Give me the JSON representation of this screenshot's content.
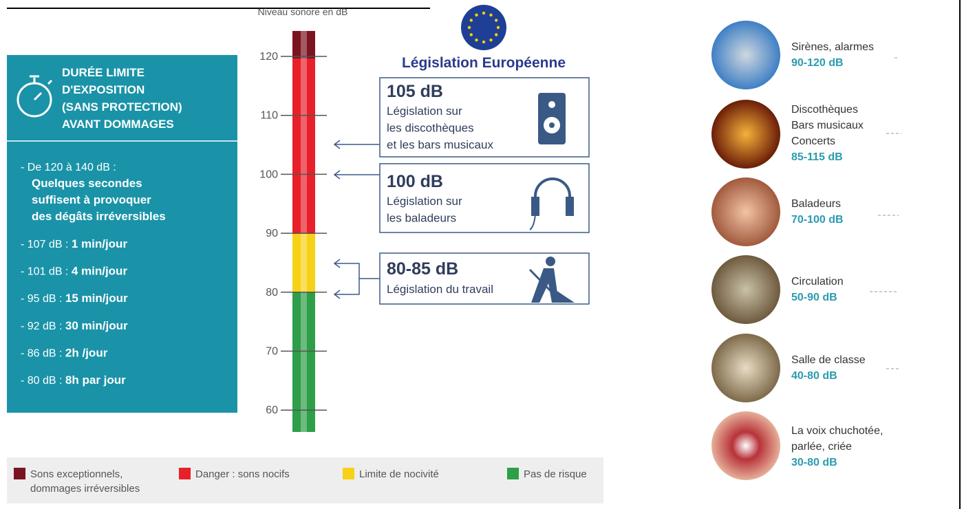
{
  "scale": {
    "label": "Niveau sonore en dB",
    "ticks": [
      "120",
      "110",
      "100",
      "90",
      "80",
      "70",
      "60"
    ]
  },
  "exposure": {
    "title": [
      "DURÉE LIMITE",
      "D'EXPOSITION",
      "(SANS PROTECTION)",
      "AVANT DOMMAGES"
    ],
    "first": {
      "prefix": "- De 120 à 140 dB :",
      "lines": [
        "Quelques secondes",
        "suffisent à provoquer",
        "des dégâts irréversibles"
      ]
    },
    "items": [
      {
        "prefix": "- 107 dB : ",
        "duration": "1 min/jour"
      },
      {
        "prefix": "- 101 dB : ",
        "duration": "4 min/jour"
      },
      {
        "prefix": "- 95 dB : ",
        "duration": "15 min/jour"
      },
      {
        "prefix": "- 92 dB : ",
        "duration": "30 min/jour"
      },
      {
        "prefix": "- 86 dB : ",
        "duration": "2h /jour"
      },
      {
        "prefix": "- 80 dB : ",
        "duration": "8h par jour"
      }
    ]
  },
  "legislation": {
    "title": "Législation Européenne",
    "boxes": [
      {
        "level": "105 dB",
        "lines": [
          "Législation sur",
          "les discothèques",
          "et les bars musicaux"
        ]
      },
      {
        "level": "100 dB",
        "lines": [
          "Législation sur",
          "les baladeurs"
        ]
      },
      {
        "level": "80-85 dB",
        "lines": [
          "Législation du travail"
        ]
      }
    ]
  },
  "legend": [
    {
      "lines": [
        "Sons exceptionnels,",
        "dommages irréversibles"
      ]
    },
    {
      "lines": [
        "Danger : sons nocifs"
      ]
    },
    {
      "lines": [
        "Limite de nocivité"
      ]
    },
    {
      "lines": [
        "Pas de risque"
      ]
    }
  ],
  "sources": [
    {
      "lines": [
        "Sirènes, alarmes"
      ],
      "range": "90-120 dB"
    },
    {
      "lines": [
        "Discothèques",
        "Bars musicaux",
        "Concerts"
      ],
      "range": "85-115 dB"
    },
    {
      "lines": [
        "Baladeurs"
      ],
      "range": "70-100 dB"
    },
    {
      "lines": [
        "Circulation"
      ],
      "range": "50-90 dB"
    },
    {
      "lines": [
        "Salle de classe"
      ],
      "range": "40-80 dB"
    },
    {
      "lines": [
        "La voix chuchotée,",
        "parlée, criée"
      ],
      "range": "30-80 dB"
    }
  ]
}
